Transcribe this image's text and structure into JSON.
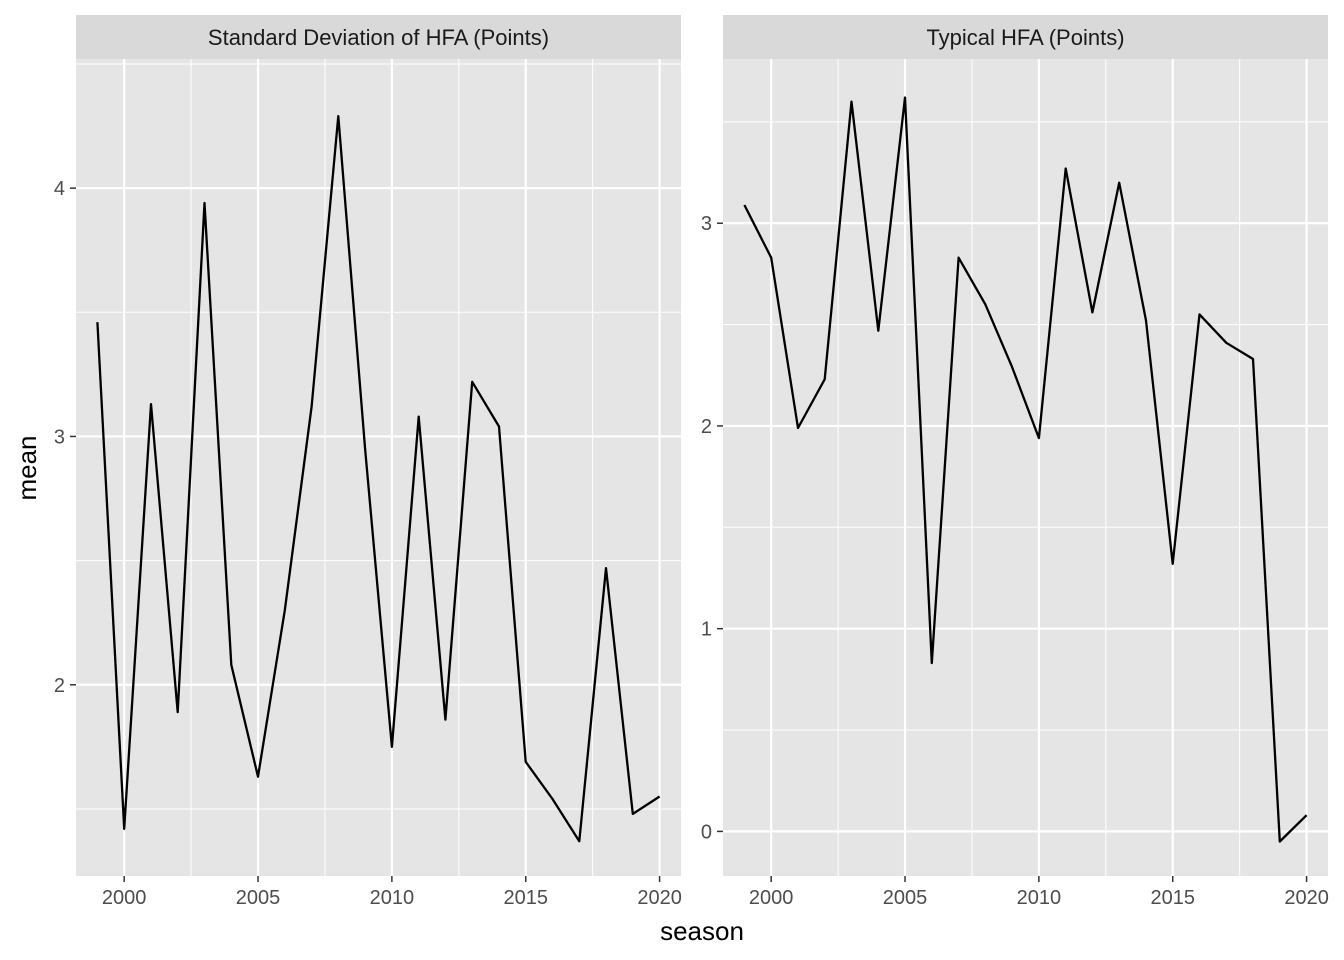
{
  "chart_data": {
    "type": "line",
    "xlabel": "season",
    "ylabel": "mean",
    "colors": {
      "panel_background": "#e5e5e5",
      "strip_background": "#d9d9d9",
      "grid": "#ffffff",
      "line": "#000000"
    },
    "grid": true,
    "panels": [
      {
        "title": "Standard Deviation of HFA (Points)",
        "x_ticks": [
          2000,
          2005,
          2010,
          2015,
          2020
        ],
        "y_ticks": [
          2,
          3,
          4
        ],
        "xlim": [
          1998.2,
          2020.8
        ],
        "ylim": [
          1.23,
          4.52
        ],
        "x": [
          1999,
          2000,
          2001,
          2002,
          2003,
          2004,
          2005,
          2006,
          2007,
          2008,
          2009,
          2010,
          2011,
          2012,
          2013,
          2014,
          2015,
          2016,
          2017,
          2018,
          2019,
          2020
        ],
        "y": [
          3.46,
          1.42,
          3.13,
          1.89,
          3.94,
          2.08,
          1.63,
          2.3,
          3.12,
          4.29,
          2.95,
          1.75,
          3.08,
          1.86,
          3.22,
          3.04,
          1.69,
          1.54,
          1.37,
          2.47,
          1.48,
          1.55
        ]
      },
      {
        "title": "Typical HFA (Points)",
        "x_ticks": [
          2000,
          2005,
          2010,
          2015,
          2020
        ],
        "y_ticks": [
          0,
          1,
          2,
          3
        ],
        "xlim": [
          1998.2,
          2020.8
        ],
        "ylim": [
          -0.22,
          3.81
        ],
        "x": [
          1999,
          2000,
          2001,
          2002,
          2003,
          2004,
          2005,
          2006,
          2007,
          2008,
          2009,
          2010,
          2011,
          2012,
          2013,
          2014,
          2015,
          2016,
          2017,
          2018,
          2019,
          2020
        ],
        "y": [
          3.09,
          2.83,
          1.99,
          2.23,
          3.6,
          2.47,
          3.62,
          0.83,
          2.83,
          2.6,
          2.29,
          1.94,
          3.27,
          2.56,
          3.2,
          2.52,
          1.32,
          2.55,
          2.41,
          2.33,
          -0.05,
          0.08
        ]
      }
    ]
  }
}
